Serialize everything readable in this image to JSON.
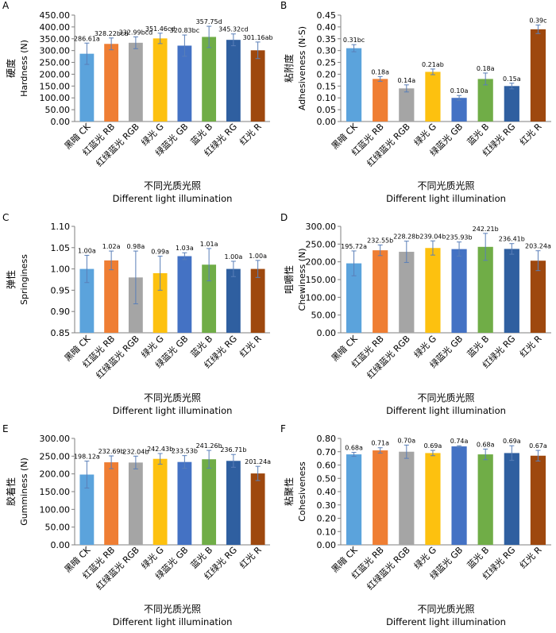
{
  "xlabel_zh": "不同光质光照",
  "xlabel_en": "Different light illumination",
  "categories": [
    "黑暗 CK",
    "红蓝光 RB",
    "红绿蓝光 RGB",
    "绿光 G",
    "绿蓝光 GB",
    "蓝光 B",
    "红绿光 RG",
    "红光 R"
  ],
  "colors": [
    "#5ba3dc",
    "#ef7e33",
    "#a5a5a5",
    "#fdc10f",
    "#4472c4",
    "#70ad47",
    "#2f5fa0",
    "#9e480e"
  ],
  "chart_data": [
    {
      "type": "bar",
      "panel": "A",
      "ylabel_zh": "硬度",
      "ylabel_en": "Hardness (N)",
      "ylim": [
        0,
        450
      ],
      "ystep": 50,
      "ydec": 2,
      "categories": [
        "黑暗 CK",
        "红蓝光 RB",
        "红绿蓝光 RGB",
        "绿光 G",
        "绿蓝光 GB",
        "蓝光 B",
        "红绿光 RG",
        "红光 R"
      ],
      "values": [
        286.61,
        328.22,
        332.99,
        351.46,
        320.83,
        357.75,
        345.32,
        301.16
      ],
      "errors": [
        45,
        25,
        25,
        22,
        45,
        45,
        25,
        35
      ],
      "labels": [
        "286.61a",
        "328.22bcd",
        "332.99bcd",
        "351.46cd",
        "320.83bc",
        "357.75d",
        "345.32cd",
        "301.16ab"
      ]
    },
    {
      "type": "bar",
      "panel": "B",
      "ylabel_zh": "粘附度",
      "ylabel_en": "Adhesiveness (N·S)",
      "ylim": [
        0,
        0.45
      ],
      "ystep": 0.05,
      "ydec": 2,
      "categories": [
        "黑暗 CK",
        "红蓝光 RB",
        "红绿蓝光 RGB",
        "绿光 G",
        "绿蓝光 GB",
        "蓝光 B",
        "红绿光 RG",
        "红光 R"
      ],
      "values": [
        0.31,
        0.18,
        0.14,
        0.21,
        0.1,
        0.18,
        0.15,
        0.39
      ],
      "errors": [
        0.015,
        0.01,
        0.015,
        0.012,
        0.01,
        0.025,
        0.012,
        0.018
      ],
      "labels": [
        "0.31bc",
        "0.18a",
        "0.14a",
        "0.21ab",
        "0.10a",
        "0.18a",
        "0.15a",
        "0.39c"
      ]
    },
    {
      "type": "bar",
      "panel": "C",
      "ylabel_zh": "弹性",
      "ylabel_en": "Springiness",
      "ylim": [
        0.85,
        1.1
      ],
      "ystep": 0.05,
      "ydec": 2,
      "categories": [
        "黑暗 CK",
        "红蓝光 RB",
        "红绿蓝光 RGB",
        "绿光 G",
        "绿蓝光 GB",
        "蓝光 B",
        "红绿光 RG",
        "红光 R"
      ],
      "values": [
        1.0,
        1.02,
        0.98,
        0.99,
        1.03,
        1.01,
        1.0,
        1.0
      ],
      "errors": [
        0.032,
        0.022,
        0.062,
        0.04,
        0.008,
        0.038,
        0.018,
        0.02
      ],
      "labels": [
        "1.00a",
        "1.02a",
        "0.98a",
        "0.99a",
        "1.03a",
        "1.01a",
        "1.00a",
        "1.00a"
      ]
    },
    {
      "type": "bar",
      "panel": "D",
      "ylabel_zh": "咀嚼性",
      "ylabel_en": "Chewiness (N)",
      "ylim": [
        0,
        300
      ],
      "ystep": 50,
      "ydec": 2,
      "categories": [
        "黑暗 CK",
        "红蓝光 RB",
        "红绿蓝光 RGB",
        "绿光 G",
        "绿蓝光 GB",
        "蓝光 B",
        "红绿光 RG",
        "红光 R"
      ],
      "values": [
        195.72,
        232.55,
        228.28,
        239.04,
        235.93,
        242.21,
        236.41,
        203.24
      ],
      "errors": [
        35,
        15,
        30,
        20,
        20,
        38,
        15,
        28
      ],
      "labels": [
        "195.72a",
        "232.55b",
        "228.28b",
        "239.04b",
        "235.93b",
        "242.21b",
        "236.41b",
        "203.24a"
      ]
    },
    {
      "type": "bar",
      "panel": "E",
      "ylabel_zh": "胶着性",
      "ylabel_en": "Gumminess (N)",
      "ylim": [
        0,
        300
      ],
      "ystep": 50,
      "ydec": 2,
      "categories": [
        "黑暗 CK",
        "红蓝光 RB",
        "红绿蓝光 RGB",
        "绿光 G",
        "绿蓝光 GB",
        "蓝光 B",
        "红绿光 RG",
        "红光 R"
      ],
      "values": [
        198.12,
        232.69,
        232.04,
        242.43,
        233.53,
        241.26,
        236.71,
        201.24
      ],
      "errors": [
        38,
        18,
        18,
        15,
        18,
        25,
        18,
        20
      ],
      "labels": [
        "198.12a",
        "232.69b",
        "232.04b",
        "242.43b",
        "233.53b",
        "241.26b",
        "236.71b",
        "201.24a"
      ]
    },
    {
      "type": "bar",
      "panel": "F",
      "ylabel_zh": "粘聚性",
      "ylabel_en": "Cohesiveness",
      "ylim": [
        0,
        0.8
      ],
      "ystep": 0.1,
      "ydec": 2,
      "categories": [
        "黑暗 CK",
        "红蓝光 RB",
        "红绿蓝光 RGB",
        "绿光 G",
        "绿蓝光 GB",
        "蓝光 B",
        "红绿光 RG",
        "红光 R"
      ],
      "values": [
        0.68,
        0.71,
        0.7,
        0.69,
        0.74,
        0.68,
        0.69,
        0.67
      ],
      "errors": [
        0.015,
        0.02,
        0.05,
        0.02,
        0.005,
        0.04,
        0.055,
        0.04
      ],
      "labels": [
        "0.68a",
        "0.71a",
        "0.70a",
        "0.69a",
        "0.74a",
        "0.68a",
        "0.69a",
        "0.67a"
      ]
    }
  ]
}
